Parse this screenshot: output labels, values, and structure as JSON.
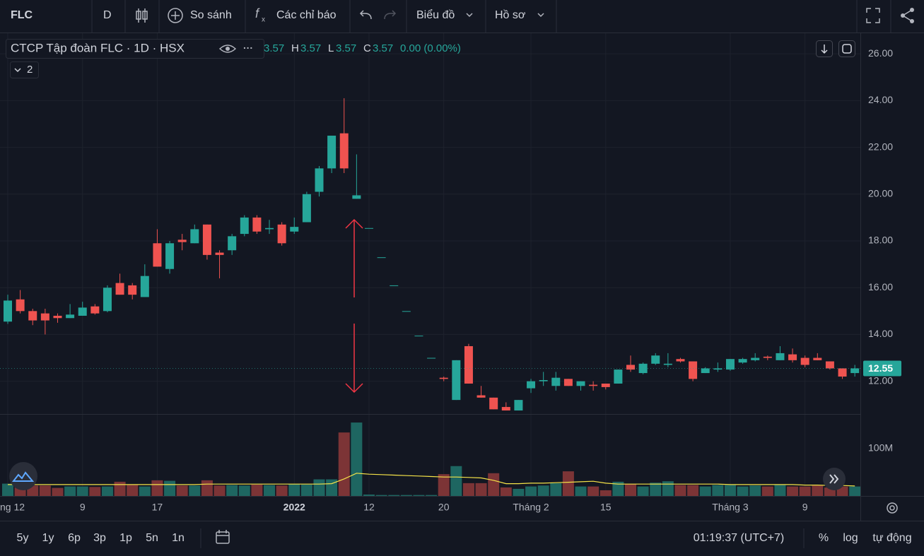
{
  "ui": {
    "toolbar": {
      "symbol": "FLC",
      "interval": "D",
      "compare": "So sánh",
      "indicators": "Các chỉ báo",
      "chart_menu": "Biểu đồ",
      "profile_menu": "Hồ sơ"
    },
    "legend": {
      "title": "CTCP Tập đoàn FLC · 1D · HSX",
      "open": "3.57",
      "h_label": "H",
      "high": "3.57",
      "l_label": "L",
      "low": "3.57",
      "c_label": "C",
      "close": "3.57",
      "change": "0.00 (0.00%)",
      "badge": "2"
    },
    "bottom_bar": {
      "ranges": [
        "5y",
        "1y",
        "6p",
        "3p",
        "1p",
        "5n",
        "1n"
      ],
      "clock": "01:19:37 (UTC+7)",
      "percent": "%",
      "log": "log",
      "auto": "tự động"
    }
  },
  "chart_data": {
    "type": "candlestick",
    "categories": [
      "ng 12",
      null,
      null,
      null,
      null,
      null,
      "9",
      null,
      null,
      null,
      null,
      null,
      "17",
      null,
      null,
      null,
      null,
      null,
      null,
      null,
      null,
      null,
      null,
      "2022",
      null,
      null,
      null,
      null,
      null,
      "12",
      null,
      null,
      null,
      null,
      null,
      "20",
      null,
      null,
      null,
      null,
      null,
      null,
      "Tháng 2",
      null,
      null,
      null,
      null,
      null,
      "15",
      null,
      null,
      null,
      null,
      null,
      null,
      null,
      null,
      null,
      "Tháng 3",
      null,
      null,
      null,
      null,
      null,
      "9",
      null,
      null,
      null,
      null
    ],
    "open": [
      14.55,
      15.5,
      15.0,
      14.9,
      14.8,
      14.7,
      14.8,
      15.2,
      15.0,
      16.2,
      16.1,
      15.6,
      17.9,
      16.8,
      18.05,
      17.9,
      18.7,
      17.5,
      17.6,
      18.3,
      19.0,
      18.5,
      18.7,
      18.4,
      18.8,
      20.1,
      21.1,
      22.6,
      19.8,
      18.55,
      17.3,
      16.1,
      15.0,
      13.95,
      13.0,
      12.15,
      11.2,
      13.5,
      11.4,
      11.3,
      10.9,
      10.75,
      11.7,
      12.0,
      11.8,
      12.1,
      11.8,
      11.85,
      11.9,
      11.9,
      12.7,
      12.35,
      12.75,
      12.7,
      12.95,
      12.85,
      12.35,
      12.5,
      12.5,
      12.8,
      12.9,
      13.05,
      12.9,
      13.15,
      13.0,
      13.0,
      12.85,
      12.55,
      12.35
    ],
    "high": [
      15.7,
      15.9,
      15.1,
      15.1,
      14.9,
      15.3,
      15.4,
      15.3,
      16.1,
      16.6,
      16.2,
      17.0,
      18.5,
      18.0,
      18.3,
      18.7,
      18.7,
      17.6,
      18.3,
      19.1,
      19.1,
      18.9,
      18.8,
      19.0,
      20.1,
      21.2,
      22.5,
      24.1,
      21.7,
      18.55,
      17.3,
      16.1,
      15.0,
      13.95,
      13.0,
      12.2,
      12.9,
      13.6,
      11.8,
      11.3,
      11.1,
      11.2,
      12.1,
      12.4,
      12.4,
      12.1,
      12.0,
      12.0,
      11.9,
      12.5,
      13.1,
      12.8,
      13.2,
      13.2,
      13.0,
      12.85,
      12.6,
      12.8,
      12.95,
      13.0,
      13.2,
      13.1,
      13.5,
      13.4,
      13.1,
      13.2,
      12.85,
      12.55,
      12.7
    ],
    "low": [
      14.45,
      14.9,
      14.4,
      14.0,
      14.5,
      14.7,
      14.8,
      14.85,
      14.95,
      15.7,
      15.5,
      15.6,
      16.9,
      16.6,
      17.6,
      17.9,
      17.2,
      16.4,
      17.4,
      18.2,
      18.3,
      18.3,
      17.8,
      18.3,
      18.8,
      19.9,
      20.9,
      20.9,
      19.8,
      18.55,
      17.3,
      16.1,
      15.0,
      13.95,
      13.0,
      12.0,
      11.2,
      11.9,
      11.3,
      10.8,
      10.75,
      10.75,
      11.5,
      11.8,
      11.6,
      11.8,
      11.6,
      11.6,
      11.65,
      11.9,
      12.4,
      12.3,
      12.7,
      12.6,
      12.8,
      12.0,
      12.35,
      12.4,
      12.45,
      12.75,
      12.85,
      12.9,
      12.9,
      12.8,
      12.6,
      12.9,
      12.5,
      12.1,
      12.2
    ],
    "close": [
      15.45,
      15.0,
      14.6,
      14.6,
      14.7,
      14.85,
      15.15,
      14.9,
      16.0,
      15.7,
      15.7,
      16.5,
      16.9,
      17.9,
      17.95,
      18.5,
      17.4,
      17.4,
      18.2,
      19.0,
      18.4,
      18.55,
      17.9,
      18.6,
      20.0,
      21.1,
      22.5,
      21.1,
      19.95,
      18.55,
      17.3,
      16.1,
      15.0,
      13.95,
      13.0,
      12.1,
      12.9,
      11.9,
      11.3,
      10.8,
      10.75,
      11.2,
      12.0,
      12.05,
      12.15,
      11.8,
      12.0,
      11.8,
      11.75,
      12.5,
      12.5,
      12.75,
      13.1,
      12.75,
      12.85,
      12.1,
      12.55,
      12.55,
      12.95,
      12.95,
      13.0,
      13.0,
      13.2,
      12.9,
      12.7,
      12.9,
      12.55,
      12.2,
      12.55
    ],
    "up_color": "#26a69a",
    "down_color": "#ef5350",
    "ylim": [
      10.6,
      26.85
    ],
    "yticks": [
      {
        "value": 12,
        "label": "12.00"
      },
      {
        "value": 14,
        "label": "14.00"
      },
      {
        "value": 16,
        "label": "16.00"
      },
      {
        "value": 18,
        "label": "18.00"
      },
      {
        "value": 20,
        "label": "20.00"
      },
      {
        "value": 22,
        "label": "22.00"
      },
      {
        "value": 24,
        "label": "24.00"
      },
      {
        "value": 26,
        "label": "26.00"
      }
    ],
    "last_price": 12.55,
    "grid": true,
    "volume": {
      "values": [
        26,
        22,
        22,
        22,
        17,
        20,
        20,
        19,
        20,
        30,
        23,
        20,
        33,
        32,
        22,
        22,
        33,
        22,
        23,
        22,
        24,
        23,
        22,
        25,
        24,
        35,
        35,
        134,
        155,
        3,
        2,
        2,
        2,
        2,
        2,
        46,
        63,
        27,
        27,
        48,
        18,
        15,
        20,
        22,
        27,
        52,
        20,
        20,
        12,
        30,
        25,
        20,
        28,
        31,
        23,
        23,
        20,
        23,
        23,
        20,
        22,
        20,
        23,
        20,
        20,
        22,
        18,
        20,
        20
      ],
      "ma_values": [
        24,
        24,
        24,
        24,
        24,
        24,
        24,
        24,
        24,
        24,
        24,
        24,
        24,
        24,
        24,
        24,
        25,
        25,
        25,
        25,
        25,
        25,
        25,
        25,
        25,
        25,
        26,
        36,
        48,
        46,
        45,
        44,
        43,
        42,
        41,
        40,
        40,
        39,
        38,
        33,
        26,
        26,
        27,
        27,
        28,
        29,
        30,
        31,
        27,
        25,
        25,
        25,
        25,
        25,
        25,
        25,
        25,
        25,
        24,
        24,
        24,
        24,
        24,
        24,
        23,
        23,
        22,
        22,
        21
      ],
      "up_color": "#1e6661",
      "down_color": "#7c3436",
      "ma_color": "#f5e348",
      "ylim": [
        0,
        173
      ],
      "yticks": [
        {
          "value": 100,
          "label": "100M"
        }
      ]
    }
  }
}
